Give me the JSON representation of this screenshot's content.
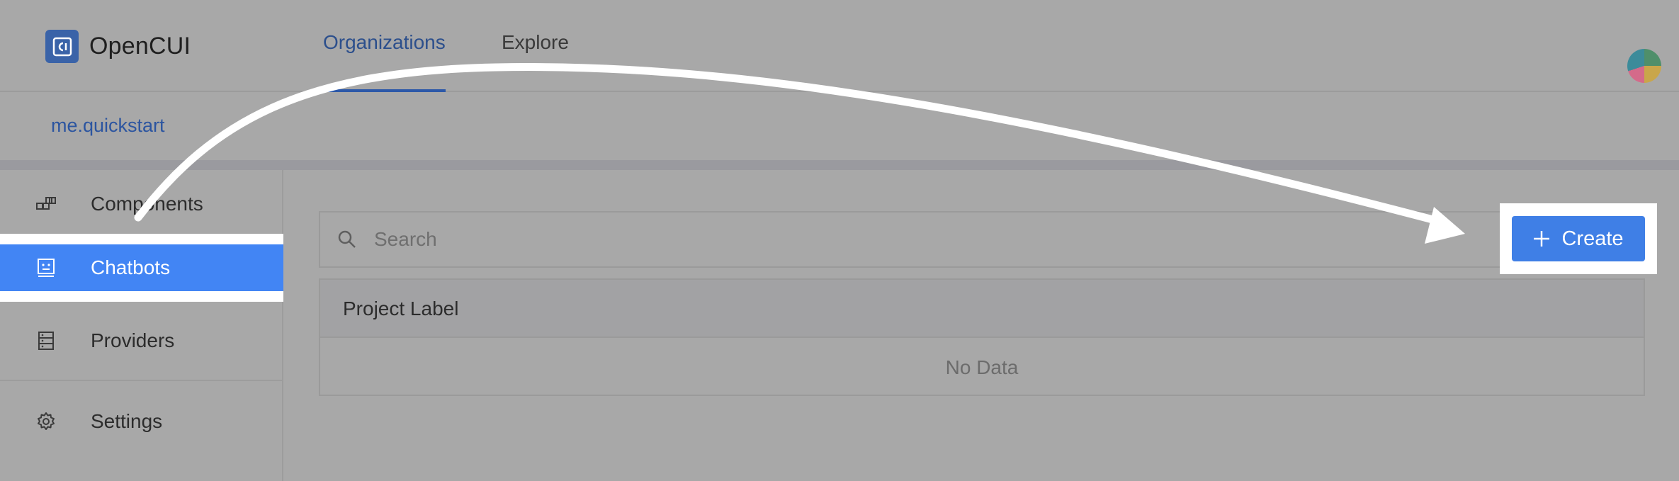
{
  "app": {
    "name": "OpenCUI",
    "logo_icon": "opencui-logo-icon"
  },
  "nav": {
    "tabs": [
      {
        "label": "Organizations",
        "active": true
      },
      {
        "label": "Explore",
        "active": false
      }
    ]
  },
  "breadcrumb": {
    "org": "me.quickstart"
  },
  "sidebar": {
    "items": [
      {
        "label": "Components",
        "icon": "components-icon"
      },
      {
        "label": "Chatbots",
        "icon": "chatbot-icon",
        "active": true
      },
      {
        "label": "Providers",
        "icon": "providers-icon"
      },
      {
        "label": "Settings",
        "icon": "gear-icon"
      }
    ]
  },
  "main": {
    "search": {
      "placeholder": "Search",
      "value": ""
    },
    "create_label": "Create",
    "table": {
      "columns": [
        "Project Label"
      ],
      "empty_text": "No Data"
    }
  },
  "colors": {
    "accent": "#4285f4",
    "link": "#2c55a0",
    "overlay_background": "#a8a8a8"
  }
}
